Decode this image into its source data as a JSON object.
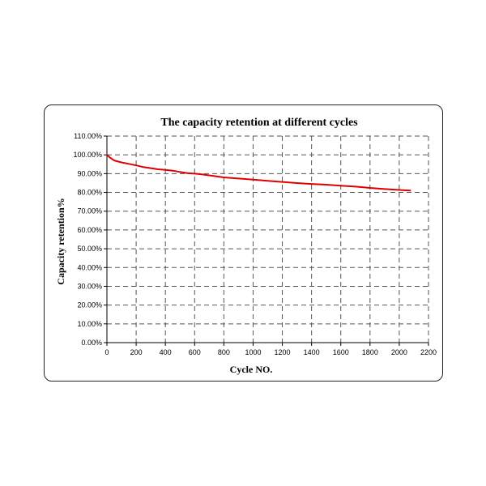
{
  "chart_data": {
    "type": "line",
    "title": "The capacity retention at different cycles",
    "xlabel": "Cycle NO.",
    "ylabel": "Capacity retention%",
    "xlim": [
      0,
      2200
    ],
    "ylim": [
      0,
      110
    ],
    "x_ticks": [
      "0",
      "200",
      "400",
      "600",
      "800",
      "1000",
      "1200",
      "1400",
      "1600",
      "1800",
      "2000",
      "2200"
    ],
    "y_ticks": [
      "0.00%",
      "10.00%",
      "20.00%",
      "30.00%",
      "40.00%",
      "50.00%",
      "60.00%",
      "70.00%",
      "80.00%",
      "90.00%",
      "100.00%",
      "110.00%"
    ],
    "grid": true,
    "legend": "none",
    "series": [
      {
        "color": "#e00000",
        "x": [
          0,
          20,
          50,
          100,
          150,
          200,
          250,
          300,
          350,
          400,
          450,
          500,
          550,
          600,
          650,
          700,
          750,
          800,
          900,
          1000,
          1100,
          1200,
          1300,
          1400,
          1500,
          1600,
          1700,
          1750,
          1800,
          1900,
          2000,
          2080
        ],
        "y": [
          100.0,
          98.6,
          97.0,
          96.0,
          95.2,
          94.4,
          93.5,
          92.9,
          92.3,
          92.0,
          91.6,
          90.9,
          90.3,
          90.0,
          89.6,
          89.1,
          88.5,
          88.0,
          87.4,
          86.8,
          86.2,
          85.6,
          85.0,
          84.5,
          84.1,
          83.6,
          83.1,
          82.8,
          82.4,
          81.8,
          81.3,
          81.0
        ]
      }
    ]
  }
}
